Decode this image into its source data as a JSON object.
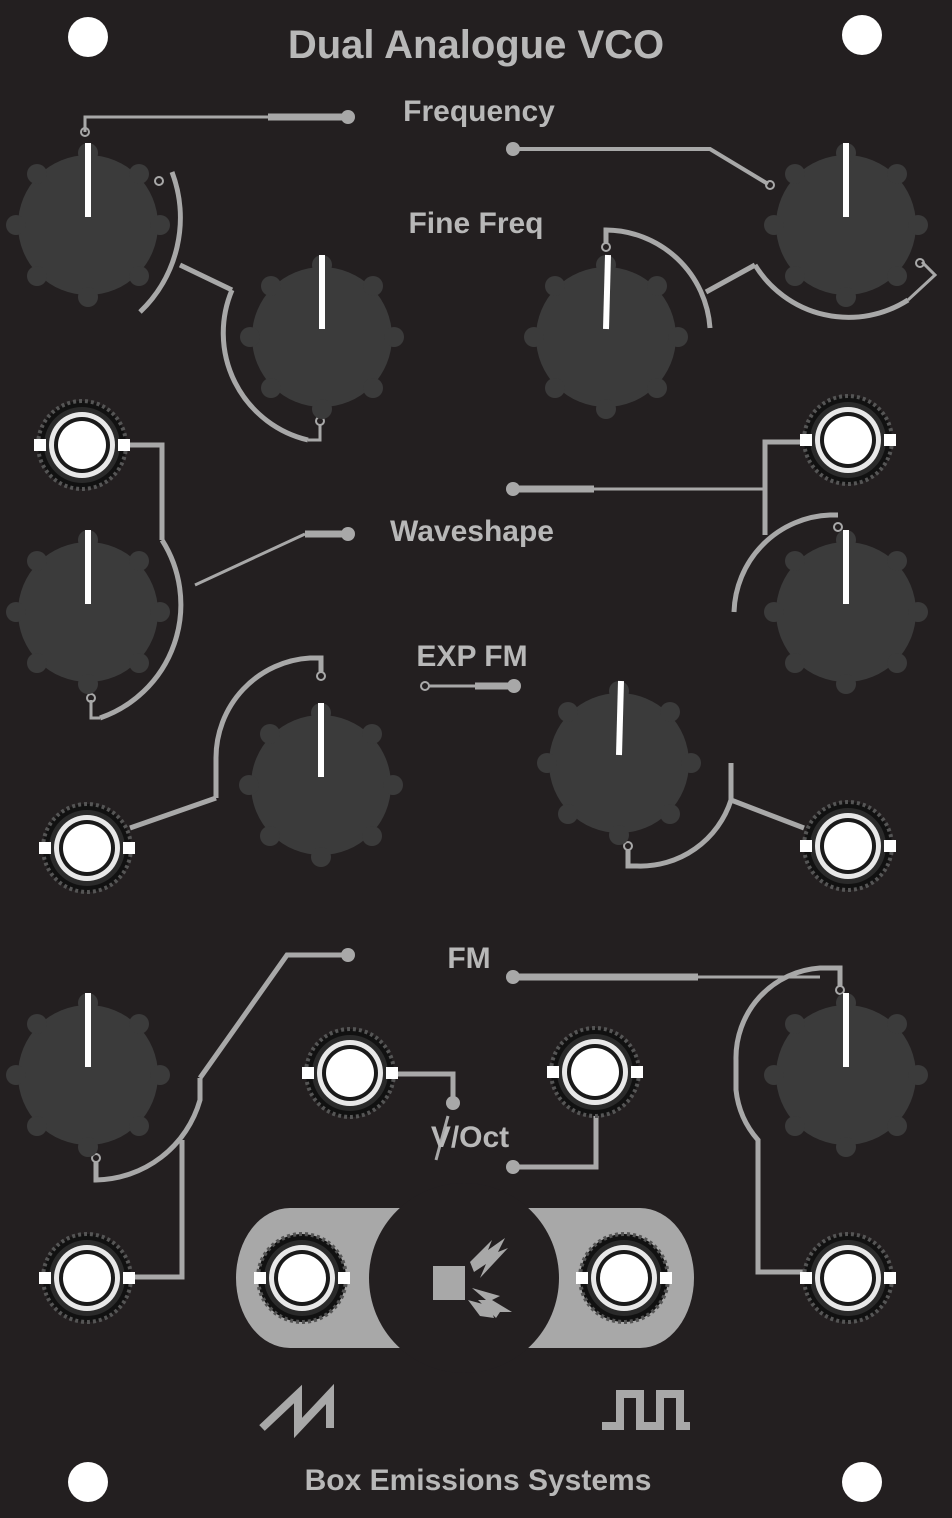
{
  "panel": {
    "title": "Dual Analogue VCO",
    "footer": "Box Emissions Systems",
    "colors": {
      "background": "#231f20",
      "graphics": "#a8a8a8",
      "knob": "#3b3b3b",
      "jack": "#ffffff"
    }
  },
  "labels": {
    "frequency": "Frequency",
    "fine_freq": "Fine Freq",
    "waveshape": "Waveshape",
    "exp_fm": "EXP FM",
    "fm": "FM",
    "voct": "V/Oct"
  },
  "icons": {
    "saw": "sawtooth-wave-icon",
    "square": "square-wave-icon",
    "sync": "sync-lightning-icon",
    "screw": "mounting-hole"
  }
}
